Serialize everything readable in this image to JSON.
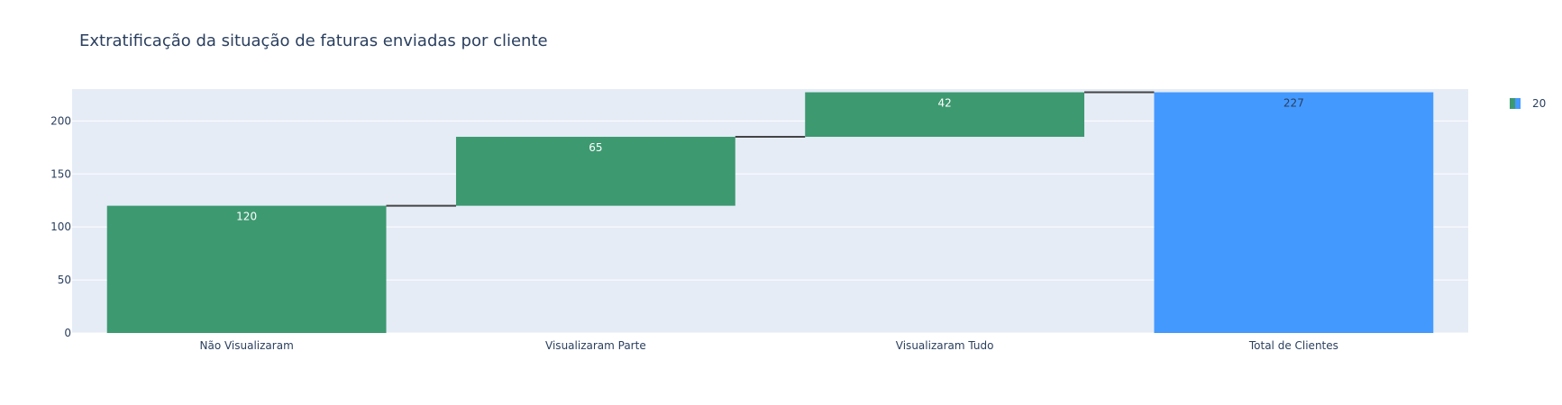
{
  "chart_data": {
    "type": "waterfall",
    "title": "Extratificação da situação de faturas enviadas por cliente",
    "categories": [
      "Não Visualizaram",
      "Visualizaram Parte",
      "Visualizaram Tudo",
      "Total de Clientes"
    ],
    "measures": [
      "relative",
      "relative",
      "relative",
      "total"
    ],
    "values": [
      120,
      65,
      42,
      227
    ],
    "text_labels": [
      "120",
      "65",
      "42",
      "227"
    ],
    "xlabel": "",
    "ylabel": "",
    "ylim": [
      0,
      230
    ],
    "yticks": [
      0,
      50,
      100,
      150,
      200
    ],
    "grid": true,
    "legend": {
      "position": "top-right",
      "entries": [
        {
          "name": "20"
        }
      ]
    },
    "colors": {
      "increase": "#3d9970",
      "total": "#4499ff",
      "plot_bg": "#e5ecf6",
      "grid": "#ffffff",
      "connector": "#444444",
      "text": "#2a3f5f",
      "inside_label_on_increase": "#ffffff",
      "inside_label_on_total": "#2a3f5f"
    }
  }
}
